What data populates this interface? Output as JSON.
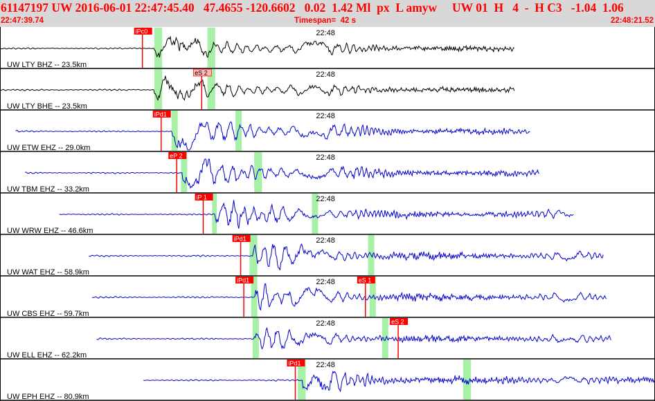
{
  "header": {
    "title": "61147197 UW 2016-06-01 22:47:45.40   47.4655 -120.6602   0.02  1.42 Ml  px  L amyw     UW 01  H   4  -  H C3   -1.04  1.06",
    "start_time": "22:47:39.74",
    "timespan": "Timespan=  42 s",
    "end_time": "22:48:21.52"
  },
  "colors": {
    "header_bg": "#d8d8d8",
    "title_text": "#ff0000",
    "trace_blue": "#0000cc",
    "trace_black": "#000000",
    "pick_red": "#ff0000",
    "pick_pink": "#ffb6b6",
    "window_green": "#a8f0a8"
  },
  "time_axis": {
    "start_s": 0,
    "end_s": 42,
    "minute_mark_s": 20.26,
    "minute_label": "22:48"
  },
  "traces": [
    {
      "label": "UW LTY BHZ -- 23.5km",
      "color": "#000000",
      "start_s": 0,
      "end_s": 33.0,
      "p_s": 9.9,
      "amp": 1.0,
      "windows": [
        [
          9.9,
          10.4
        ],
        [
          13.3,
          13.8
        ]
      ],
      "picks": [
        {
          "label": "iPc0",
          "t_s": 8.6,
          "style": "red",
          "side": "top"
        }
      ]
    },
    {
      "label": "UW LTY BHE -- 23.5km",
      "color": "#000000",
      "start_s": 0,
      "end_s": 33.0,
      "p_s": 9.9,
      "amp": 1.0,
      "windows": [
        [
          9.9,
          10.4
        ],
        [
          13.3,
          13.8
        ]
      ],
      "picks": [
        {
          "label": "eS 2",
          "t_s": 12.4,
          "style": "pink",
          "side": "top"
        }
      ]
    },
    {
      "label": "UW ETW EHZ -- 29.0km",
      "color": "#0000cc",
      "start_s": 1.0,
      "end_s": 34.0,
      "p_s": 11.0,
      "amp": 1.3,
      "windows": [
        [
          11.0,
          11.4
        ],
        [
          15.1,
          15.5
        ]
      ],
      "picks": [
        {
          "label": "iPd1",
          "t_s": 9.8,
          "style": "red",
          "side": "top"
        }
      ]
    },
    {
      "label": "UW TBM EHZ -- 33.2km",
      "color": "#0000cc",
      "start_s": 1.6,
      "end_s": 34.6,
      "p_s": 11.7,
      "amp": 1.3,
      "windows": [
        [
          11.6,
          12.0
        ],
        [
          16.3,
          16.8
        ]
      ],
      "picks": [
        {
          "label": "eP 2",
          "t_s": 10.8,
          "style": "red",
          "side": "top"
        }
      ]
    },
    {
      "label": "UW WRW EHZ -- 46.6km",
      "color": "#0000cc",
      "start_s": 3.8,
      "end_s": 36.8,
      "p_s": 13.8,
      "amp": 1.1,
      "windows": [
        [
          13.6,
          13.9
        ],
        [
          20.0,
          20.4
        ]
      ],
      "picks": [
        {
          "label": "iP 1",
          "t_s": 12.5,
          "style": "red",
          "side": "top"
        }
      ]
    },
    {
      "label": "UW WAT EHZ -- 58.9km",
      "color": "#0000cc",
      "start_s": 5.7,
      "end_s": 38.7,
      "p_s": 16.2,
      "amp": 1.0,
      "windows": [
        [
          16.0,
          16.5
        ],
        [
          23.6,
          24.0
        ]
      ],
      "picks": [
        {
          "label": "iPd1",
          "t_s": 14.9,
          "style": "red",
          "side": "top"
        }
      ]
    },
    {
      "label": "UW CBS EHZ -- 59.7km",
      "color": "#0000cc",
      "start_s": 5.9,
      "end_s": 38.9,
      "p_s": 16.3,
      "amp": 1.0,
      "windows": [
        [
          16.1,
          16.5
        ],
        [
          23.7,
          24.1
        ]
      ],
      "picks": [
        {
          "label": "iPd1",
          "t_s": 15.1,
          "style": "red",
          "side": "top"
        },
        {
          "label": "eS 1",
          "t_s": 22.9,
          "style": "red",
          "side": "top"
        }
      ]
    },
    {
      "label": "UW ELL EHZ -- 62.2km",
      "color": "#0000cc",
      "start_s": 6.2,
      "end_s": 39.2,
      "p_s": 16.3,
      "amp": 0.8,
      "windows": [
        [
          16.2,
          16.6
        ],
        [
          24.5,
          24.9
        ]
      ],
      "picks": [
        {
          "label": "eS 2",
          "t_s": 25.0,
          "style": "red",
          "side": "top"
        }
      ]
    },
    {
      "label": "UW EPH EHZ -- 80.9km",
      "color": "#0000cc",
      "start_s": 9.2,
      "end_s": 42.0,
      "p_s": 19.4,
      "amp": 1.0,
      "windows": [
        [
          19.1,
          19.6
        ],
        [
          29.7,
          30.2
        ]
      ],
      "picks": [
        {
          "label": "iPd1",
          "t_s": 18.4,
          "style": "red",
          "side": "top"
        }
      ]
    }
  ]
}
